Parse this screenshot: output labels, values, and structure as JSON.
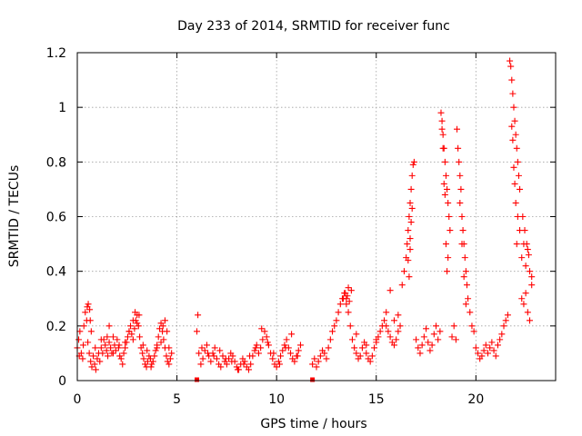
{
  "chart_data": {
    "type": "scatter",
    "title": "Day 233 of 2014, SRMTID for receiver func",
    "xlabel": "GPS time / hours",
    "ylabel": "SRMTID / TECUs",
    "xlim": [
      0,
      24
    ],
    "ylim": [
      0,
      1.2
    ],
    "xticks": [
      0,
      5,
      10,
      15,
      20
    ],
    "xtick_labels": [
      "0",
      "5",
      "10",
      "15",
      "20"
    ],
    "yticks": [
      0,
      0.2,
      0.4,
      0.6,
      0.8,
      1.0,
      1.2
    ],
    "ytick_labels": [
      "0",
      "0.2",
      "0.4",
      "0.6",
      "0.8",
      "1",
      "1.2"
    ],
    "grid": true,
    "marker": "+",
    "series": [
      {
        "name": "SRMTID",
        "color": "#ff0000",
        "x": [
          0.0,
          0.07,
          0.13,
          0.2,
          0.27,
          0.33,
          0.4,
          0.47,
          0.53,
          0.6,
          0.67,
          0.73,
          0.8,
          0.87,
          0.93,
          1.0,
          1.07,
          1.13,
          1.2,
          1.27,
          1.33,
          1.4,
          1.47,
          1.53,
          1.6,
          1.67,
          1.73,
          1.8,
          1.87,
          1.93,
          2.0,
          2.07,
          2.13,
          2.2,
          2.27,
          2.33,
          2.4,
          2.47,
          2.53,
          2.6,
          2.67,
          2.73,
          2.8,
          2.87,
          2.93,
          3.0,
          3.07,
          3.13,
          3.2,
          3.27,
          3.33,
          3.4,
          3.47,
          3.53,
          3.6,
          3.67,
          3.73,
          3.8,
          3.87,
          3.93,
          4.0,
          4.07,
          4.13,
          4.2,
          4.27,
          4.33,
          4.4,
          4.47,
          4.53,
          4.6,
          4.67,
          4.73,
          0.1,
          0.3,
          0.5,
          0.55,
          0.62,
          0.65,
          0.7,
          0.9,
          1.2,
          1.5,
          1.6,
          1.8,
          2.1,
          2.4,
          2.6,
          2.8,
          2.9,
          3.0,
          3.1,
          3.3,
          3.5,
          3.7,
          4.0,
          4.2,
          4.3,
          4.4,
          4.5,
          4.6,
          6.0,
          6.1,
          6.2,
          6.3,
          6.4,
          6.5,
          6.6,
          6.7,
          6.8,
          6.9,
          7.0,
          7.1,
          7.2,
          7.3,
          7.4,
          7.5,
          7.6,
          7.7,
          7.8,
          7.9,
          8.0,
          8.1,
          8.2,
          8.3,
          8.4,
          8.5,
          8.6,
          8.7,
          8.8,
          8.9,
          9.0,
          9.1,
          9.2,
          9.3,
          9.4,
          9.5,
          9.6,
          9.7,
          9.8,
          9.9,
          10.0,
          10.1,
          10.2,
          10.3,
          10.4,
          10.5,
          10.6,
          10.7,
          10.8,
          10.9,
          11.0,
          11.1,
          11.2,
          6.05,
          6.25,
          6.55,
          6.85,
          7.15,
          7.45,
          7.75,
          8.05,
          8.35,
          8.65,
          8.95,
          9.25,
          9.55,
          9.85,
          10.15,
          10.45,
          10.75,
          11.05,
          6.0,
          11.8,
          11.8,
          11.9,
          12.0,
          12.1,
          12.2,
          12.3,
          12.4,
          12.5,
          12.6,
          12.7,
          12.8,
          12.9,
          13.0,
          13.1,
          13.2,
          13.3,
          13.4,
          13.5,
          13.6,
          13.7,
          13.8,
          13.9,
          14.0,
          14.1,
          14.2,
          14.3,
          14.4,
          14.5,
          14.6,
          14.7,
          14.8,
          14.9,
          15.0,
          15.1,
          15.2,
          15.3,
          15.4,
          15.5,
          15.6,
          15.7,
          15.8,
          15.9,
          16.0,
          16.1,
          16.2,
          13.35,
          13.45,
          13.55,
          13.65,
          13.75,
          13.5,
          13.6,
          14.0,
          14.5,
          15.0,
          15.5,
          15.7,
          15.9,
          16.1,
          16.3,
          16.4,
          16.5,
          16.55,
          16.6,
          16.65,
          16.7,
          16.75,
          16.8,
          16.85,
          16.9,
          16.6,
          16.7,
          16.8,
          16.75,
          16.7,
          16.65,
          17.0,
          17.1,
          17.2,
          17.3,
          17.4,
          17.5,
          17.6,
          17.7,
          17.8,
          17.9,
          18.0,
          18.1,
          18.2,
          18.25,
          18.3,
          18.35,
          18.4,
          18.45,
          18.5,
          18.55,
          18.6,
          18.65,
          18.7,
          18.3,
          18.4,
          18.5,
          18.6,
          18.35,
          18.45,
          18.55,
          18.8,
          18.9,
          19.0,
          19.05,
          19.1,
          19.15,
          19.2,
          19.25,
          19.3,
          19.35,
          19.4,
          19.45,
          19.5,
          19.55,
          19.6,
          19.7,
          19.8,
          19.9,
          19.2,
          19.3,
          19.4,
          19.5,
          20.0,
          20.1,
          20.2,
          20.3,
          20.4,
          20.5,
          20.6,
          20.7,
          20.8,
          20.9,
          21.0,
          21.1,
          21.2,
          21.3,
          21.4,
          21.5,
          21.6,
          21.7,
          21.75,
          21.8,
          21.85,
          21.9,
          21.95,
          22.0,
          22.05,
          22.1,
          22.15,
          22.2,
          21.8,
          21.9,
          22.0,
          22.1,
          22.2,
          21.85,
          21.95,
          22.05,
          22.3,
          22.4,
          22.5,
          22.6,
          22.7,
          22.8,
          22.3,
          22.4,
          22.5,
          22.6,
          22.7,
          22.8,
          22.35,
          22.45,
          22.55,
          22.65
        ],
        "y": [
          0.12,
          0.15,
          0.18,
          0.1,
          0.08,
          0.2,
          0.25,
          0.22,
          0.14,
          0.1,
          0.07,
          0.05,
          0.09,
          0.06,
          0.04,
          0.08,
          0.1,
          0.07,
          0.12,
          0.1,
          0.15,
          0.13,
          0.11,
          0.09,
          0.14,
          0.12,
          0.1,
          0.16,
          0.13,
          0.11,
          0.15,
          0.12,
          0.09,
          0.08,
          0.06,
          0.1,
          0.12,
          0.14,
          0.16,
          0.18,
          0.2,
          0.17,
          0.15,
          0.19,
          0.22,
          0.24,
          0.2,
          0.16,
          0.12,
          0.1,
          0.08,
          0.06,
          0.05,
          0.07,
          0.09,
          0.08,
          0.06,
          0.07,
          0.09,
          0.11,
          0.13,
          0.16,
          0.19,
          0.21,
          0.18,
          0.15,
          0.12,
          0.09,
          0.07,
          0.06,
          0.08,
          0.1,
          0.09,
          0.13,
          0.27,
          0.28,
          0.26,
          0.22,
          0.18,
          0.12,
          0.15,
          0.16,
          0.2,
          0.1,
          0.13,
          0.14,
          0.18,
          0.22,
          0.25,
          0.21,
          0.24,
          0.13,
          0.11,
          0.05,
          0.12,
          0.14,
          0.2,
          0.22,
          0.18,
          0.12,
          0.18,
          0.1,
          0.06,
          0.08,
          0.11,
          0.13,
          0.09,
          0.07,
          0.1,
          0.12,
          0.08,
          0.06,
          0.05,
          0.09,
          0.07,
          0.06,
          0.08,
          0.1,
          0.09,
          0.07,
          0.05,
          0.04,
          0.06,
          0.08,
          0.07,
          0.05,
          0.04,
          0.06,
          0.09,
          0.11,
          0.13,
          0.1,
          0.12,
          0.15,
          0.18,
          0.16,
          0.13,
          0.1,
          0.08,
          0.06,
          0.05,
          0.07,
          0.09,
          0.11,
          0.13,
          0.15,
          0.12,
          0.1,
          0.08,
          0.07,
          0.09,
          0.11,
          0.13,
          0.24,
          0.12,
          0.1,
          0.09,
          0.11,
          0.08,
          0.07,
          0.04,
          0.06,
          0.09,
          0.12,
          0.19,
          0.14,
          0.1,
          0.06,
          0.12,
          0.17,
          0.09,
          0.0,
          0.0,
          0.06,
          0.08,
          0.05,
          0.07,
          0.09,
          0.11,
          0.1,
          0.08,
          0.12,
          0.15,
          0.18,
          0.2,
          0.22,
          0.25,
          0.28,
          0.3,
          0.32,
          0.3,
          0.25,
          0.2,
          0.15,
          0.12,
          0.1,
          0.08,
          0.09,
          0.12,
          0.14,
          0.1,
          0.08,
          0.07,
          0.09,
          0.12,
          0.14,
          0.16,
          0.18,
          0.2,
          0.22,
          0.2,
          0.18,
          0.16,
          0.14,
          0.13,
          0.15,
          0.18,
          0.2,
          0.3,
          0.32,
          0.31,
          0.29,
          0.33,
          0.28,
          0.34,
          0.17,
          0.13,
          0.15,
          0.25,
          0.33,
          0.22,
          0.24,
          0.35,
          0.4,
          0.45,
          0.5,
          0.55,
          0.6,
          0.65,
          0.7,
          0.75,
          0.79,
          0.8,
          0.44,
          0.52,
          0.63,
          0.58,
          0.48,
          0.38,
          0.15,
          0.12,
          0.1,
          0.13,
          0.16,
          0.19,
          0.14,
          0.11,
          0.13,
          0.17,
          0.2,
          0.15,
          0.18,
          0.98,
          0.95,
          0.9,
          0.85,
          0.8,
          0.75,
          0.7,
          0.65,
          0.6,
          0.55,
          0.92,
          0.72,
          0.5,
          0.45,
          0.85,
          0.68,
          0.4,
          0.16,
          0.2,
          0.15,
          0.92,
          0.85,
          0.8,
          0.75,
          0.7,
          0.6,
          0.55,
          0.5,
          0.45,
          0.4,
          0.35,
          0.3,
          0.25,
          0.2,
          0.18,
          0.65,
          0.5,
          0.38,
          0.28,
          0.12,
          0.1,
          0.08,
          0.09,
          0.11,
          0.13,
          0.1,
          0.12,
          0.14,
          0.11,
          0.09,
          0.13,
          0.15,
          0.17,
          0.2,
          0.22,
          0.24,
          1.17,
          1.15,
          1.1,
          1.05,
          1.0,
          0.95,
          0.9,
          0.85,
          0.8,
          0.75,
          0.7,
          0.93,
          0.78,
          0.65,
          0.6,
          0.55,
          0.88,
          0.72,
          0.5,
          0.45,
          0.5,
          0.42,
          0.48,
          0.4,
          0.35,
          0.3,
          0.28,
          0.32,
          0.25,
          0.22,
          0.38,
          0.6,
          0.55,
          0.5,
          0.46
        ]
      }
    ]
  }
}
